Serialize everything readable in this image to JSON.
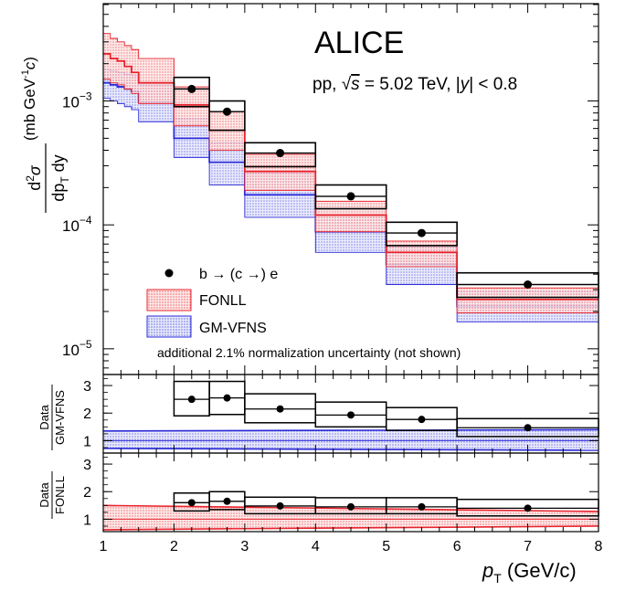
{
  "chart_data": [
    {
      "type": "step-histogram",
      "panel": "cross-section",
      "title": "ALICE",
      "subtitle_prefix": "pp, ",
      "subtitle_sqrt": "√",
      "subtitle_s": "s",
      "subtitle_energy": " = 5.02 TeV, |",
      "subtitle_y": "y",
      "subtitle_rap": "| < 0.8",
      "ylabel_num_d": "d",
      "ylabel_num_sup": "2",
      "ylabel_num_sigma": "σ",
      "ylabel_den_dp": "dp",
      "ylabel_den_sub": "T",
      "ylabel_den_dy": " dy",
      "yunit": "(mb GeV",
      "yunit_sup": "-1",
      "yunit_c": "c",
      "yunit_close": ")",
      "yscale": "log",
      "ylim": [
        6.2e-06,
        0.0061
      ],
      "xlim": [
        1,
        8
      ],
      "ytick_labels": [
        {
          "base": "10",
          "exp": "−3",
          "value": 0.001
        },
        {
          "base": "10",
          "exp": "−4",
          "value": 0.0001
        },
        {
          "base": "10",
          "exp": "−5",
          "value": 1e-05
        }
      ],
      "data_series": {
        "name": "b → (c →) e",
        "marker": "circle",
        "color": "#000000",
        "points": [
          {
            "x": 2.25,
            "xlo": 2.0,
            "xhi": 2.5,
            "y": 0.00125,
            "sys_lo": 0.0009,
            "sys_hi": 0.00155
          },
          {
            "x": 2.75,
            "xlo": 2.5,
            "xhi": 3.0,
            "y": 0.00082,
            "sys_lo": 0.00058,
            "sys_hi": 0.001
          },
          {
            "x": 3.5,
            "xlo": 3.0,
            "xhi": 4.0,
            "y": 0.00038,
            "sys_lo": 0.000295,
            "sys_hi": 0.00046
          },
          {
            "x": 4.5,
            "xlo": 4.0,
            "xhi": 5.0,
            "y": 0.00017,
            "sys_lo": 0.000135,
            "sys_hi": 0.00021
          },
          {
            "x": 5.5,
            "xlo": 5.0,
            "xhi": 6.0,
            "y": 8.6e-05,
            "sys_lo": 6.8e-05,
            "sys_hi": 0.000105
          },
          {
            "x": 7.0,
            "xlo": 6.0,
            "xhi": 8.0,
            "y": 3.3e-05,
            "sys_lo": 2.6e-05,
            "sys_hi": 4.1e-05
          }
        ]
      },
      "bands": [
        {
          "name": "FONLL",
          "color": "#e8242c",
          "fill": "#f4a6a6",
          "bins": [
            {
              "xlo": 1.0,
              "xhi": 1.1,
              "central": 0.0024,
              "lo": 0.0015,
              "hi": 0.0035
            },
            {
              "xlo": 1.1,
              "xhi": 1.2,
              "central": 0.0022,
              "lo": 0.0014,
              "hi": 0.0032
            },
            {
              "xlo": 1.2,
              "xhi": 1.3,
              "central": 0.0021,
              "lo": 0.00135,
              "hi": 0.003
            },
            {
              "xlo": 1.3,
              "xhi": 1.4,
              "central": 0.0019,
              "lo": 0.00125,
              "hi": 0.0028
            },
            {
              "xlo": 1.4,
              "xhi": 1.5,
              "central": 0.0017,
              "lo": 0.00115,
              "hi": 0.0026
            },
            {
              "xlo": 1.5,
              "xhi": 2.0,
              "central": 0.0014,
              "lo": 0.00095,
              "hi": 0.0022
            },
            {
              "xlo": 2.0,
              "xhi": 2.5,
              "central": 0.00093,
              "lo": 0.00063,
              "hi": 0.0013
            },
            {
              "xlo": 2.5,
              "xhi": 3.0,
              "central": 0.00058,
              "lo": 0.0004,
              "hi": 0.00082
            },
            {
              "xlo": 3.0,
              "xhi": 4.0,
              "central": 0.00027,
              "lo": 0.00019,
              "hi": 0.00037
            },
            {
              "xlo": 4.0,
              "xhi": 5.0,
              "central": 0.00012,
              "lo": 8.8e-05,
              "hi": 0.000155
            },
            {
              "xlo": 5.0,
              "xhi": 6.0,
              "central": 6e-05,
              "lo": 4.6e-05,
              "hi": 7.4e-05
            },
            {
              "xlo": 6.0,
              "xhi": 8.0,
              "central": 2.5e-05,
              "lo": 1.95e-05,
              "hi": 3.1e-05
            }
          ]
        },
        {
          "name": "GM-VFNS",
          "color": "#2b2bd8",
          "fill": "#a9b4ec",
          "bins": [
            {
              "xlo": 1.0,
              "xhi": 1.1,
              "central": 0.0014,
              "lo": 0.00105,
              "hi": 0.0018
            },
            {
              "xlo": 1.1,
              "xhi": 1.2,
              "central": 0.00135,
              "lo": 0.001,
              "hi": 0.00175
            },
            {
              "xlo": 1.2,
              "xhi": 1.3,
              "central": 0.0013,
              "lo": 0.00095,
              "hi": 0.0017
            },
            {
              "xlo": 1.3,
              "xhi": 1.4,
              "central": 0.00125,
              "lo": 0.0009,
              "hi": 0.00165
            },
            {
              "xlo": 1.4,
              "xhi": 1.5,
              "central": 0.0012,
              "lo": 0.00085,
              "hi": 0.0016
            },
            {
              "xlo": 1.5,
              "xhi": 2.0,
              "central": 0.00098,
              "lo": 0.00068,
              "hi": 0.00135
            },
            {
              "xlo": 2.0,
              "xhi": 2.5,
              "central": 0.0005,
              "lo": 0.00035,
              "hi": 0.00072
            },
            {
              "xlo": 2.5,
              "xhi": 3.0,
              "central": 0.00032,
              "lo": 0.00021,
              "hi": 0.00046
            },
            {
              "xlo": 3.0,
              "xhi": 4.0,
              "central": 0.000175,
              "lo": 0.000115,
              "hi": 0.00026
            },
            {
              "xlo": 4.0,
              "xhi": 5.0,
              "central": 8.8e-05,
              "lo": 6e-05,
              "hi": 0.00012
            },
            {
              "xlo": 5.0,
              "xhi": 6.0,
              "central": 4.8e-05,
              "lo": 3.3e-05,
              "hi": 6.6e-05
            },
            {
              "xlo": 6.0,
              "xhi": 8.0,
              "central": 2.2e-05,
              "lo": 1.65e-05,
              "hi": 2.9e-05
            }
          ]
        }
      ],
      "legend": {
        "placement": "bottom-left",
        "entries": [
          "b → (c →) e",
          "FONLL",
          "GM-VFNS"
        ]
      },
      "annotation": "additional 2.1% normalization uncertainty (not shown)"
    },
    {
      "type": "ratio",
      "panel": "ratio-gmvfns",
      "ylabel_top": "Data",
      "ylabel_bottom": "GM-VFNS",
      "ylim": [
        0.55,
        3.4
      ],
      "yticks": [
        "1",
        "2",
        "3"
      ],
      "ytick_values": [
        1,
        2,
        3
      ],
      "band": {
        "color": "#2b2bd8",
        "fill": "#a9b4ec",
        "lo_start": 0.72,
        "lo_end": 0.65,
        "hi_start": 1.35,
        "hi_end": 1.4
      },
      "points": [
        {
          "x": 2.25,
          "xlo": 2.0,
          "xhi": 2.5,
          "y": 2.5,
          "sys_lo": 1.9,
          "sys_hi": 3.15
        },
        {
          "x": 2.75,
          "xlo": 2.5,
          "xhi": 3.0,
          "y": 2.55,
          "sys_lo": 1.95,
          "sys_hi": 3.15
        },
        {
          "x": 3.5,
          "xlo": 3.0,
          "xhi": 4.0,
          "y": 2.15,
          "sys_lo": 1.65,
          "sys_hi": 2.7
        },
        {
          "x": 4.5,
          "xlo": 4.0,
          "xhi": 5.0,
          "y": 1.93,
          "sys_lo": 1.5,
          "sys_hi": 2.4
        },
        {
          "x": 5.5,
          "xlo": 5.0,
          "xhi": 6.0,
          "y": 1.77,
          "sys_lo": 1.37,
          "sys_hi": 2.2
        },
        {
          "x": 7.0,
          "xlo": 6.0,
          "xhi": 8.0,
          "y": 1.47,
          "sys_lo": 1.15,
          "sys_hi": 1.8
        }
      ]
    },
    {
      "type": "ratio",
      "panel": "ratio-fonll",
      "ylabel_top": "Data",
      "ylabel_bottom": "FONLL",
      "xlabel_p": "p",
      "xlabel_sub": "T",
      "xlabel_unit": " (GeV/c)",
      "xticks": [
        "1",
        "2",
        "3",
        "4",
        "5",
        "6",
        "7",
        "8"
      ],
      "xtick_values": [
        1,
        2,
        3,
        4,
        5,
        6,
        7,
        8
      ],
      "ylim": [
        0.55,
        3.4
      ],
      "yticks": [
        "1",
        "2",
        "3"
      ],
      "ytick_values": [
        1,
        2,
        3
      ],
      "band": {
        "color": "#e8242c",
        "fill": "#f4a6a6",
        "lo_start": 0.62,
        "lo_end": 0.75,
        "hi_start": 1.5,
        "hi_end": 1.28
      },
      "points": [
        {
          "x": 2.25,
          "xlo": 2.0,
          "xhi": 2.5,
          "y": 1.6,
          "sys_lo": 1.3,
          "sys_hi": 1.95
        },
        {
          "x": 2.75,
          "xlo": 2.5,
          "xhi": 3.0,
          "y": 1.65,
          "sys_lo": 1.35,
          "sys_hi": 2.0
        },
        {
          "x": 3.5,
          "xlo": 3.0,
          "xhi": 4.0,
          "y": 1.48,
          "sys_lo": 1.2,
          "sys_hi": 1.8
        },
        {
          "x": 4.5,
          "xlo": 4.0,
          "xhi": 5.0,
          "y": 1.45,
          "sys_lo": 1.2,
          "sys_hi": 1.78
        },
        {
          "x": 5.5,
          "xlo": 5.0,
          "xhi": 6.0,
          "y": 1.45,
          "sys_lo": 1.2,
          "sys_hi": 1.78
        },
        {
          "x": 7.0,
          "xlo": 6.0,
          "xhi": 8.0,
          "y": 1.4,
          "sys_lo": 1.12,
          "sys_hi": 1.72
        }
      ]
    }
  ]
}
